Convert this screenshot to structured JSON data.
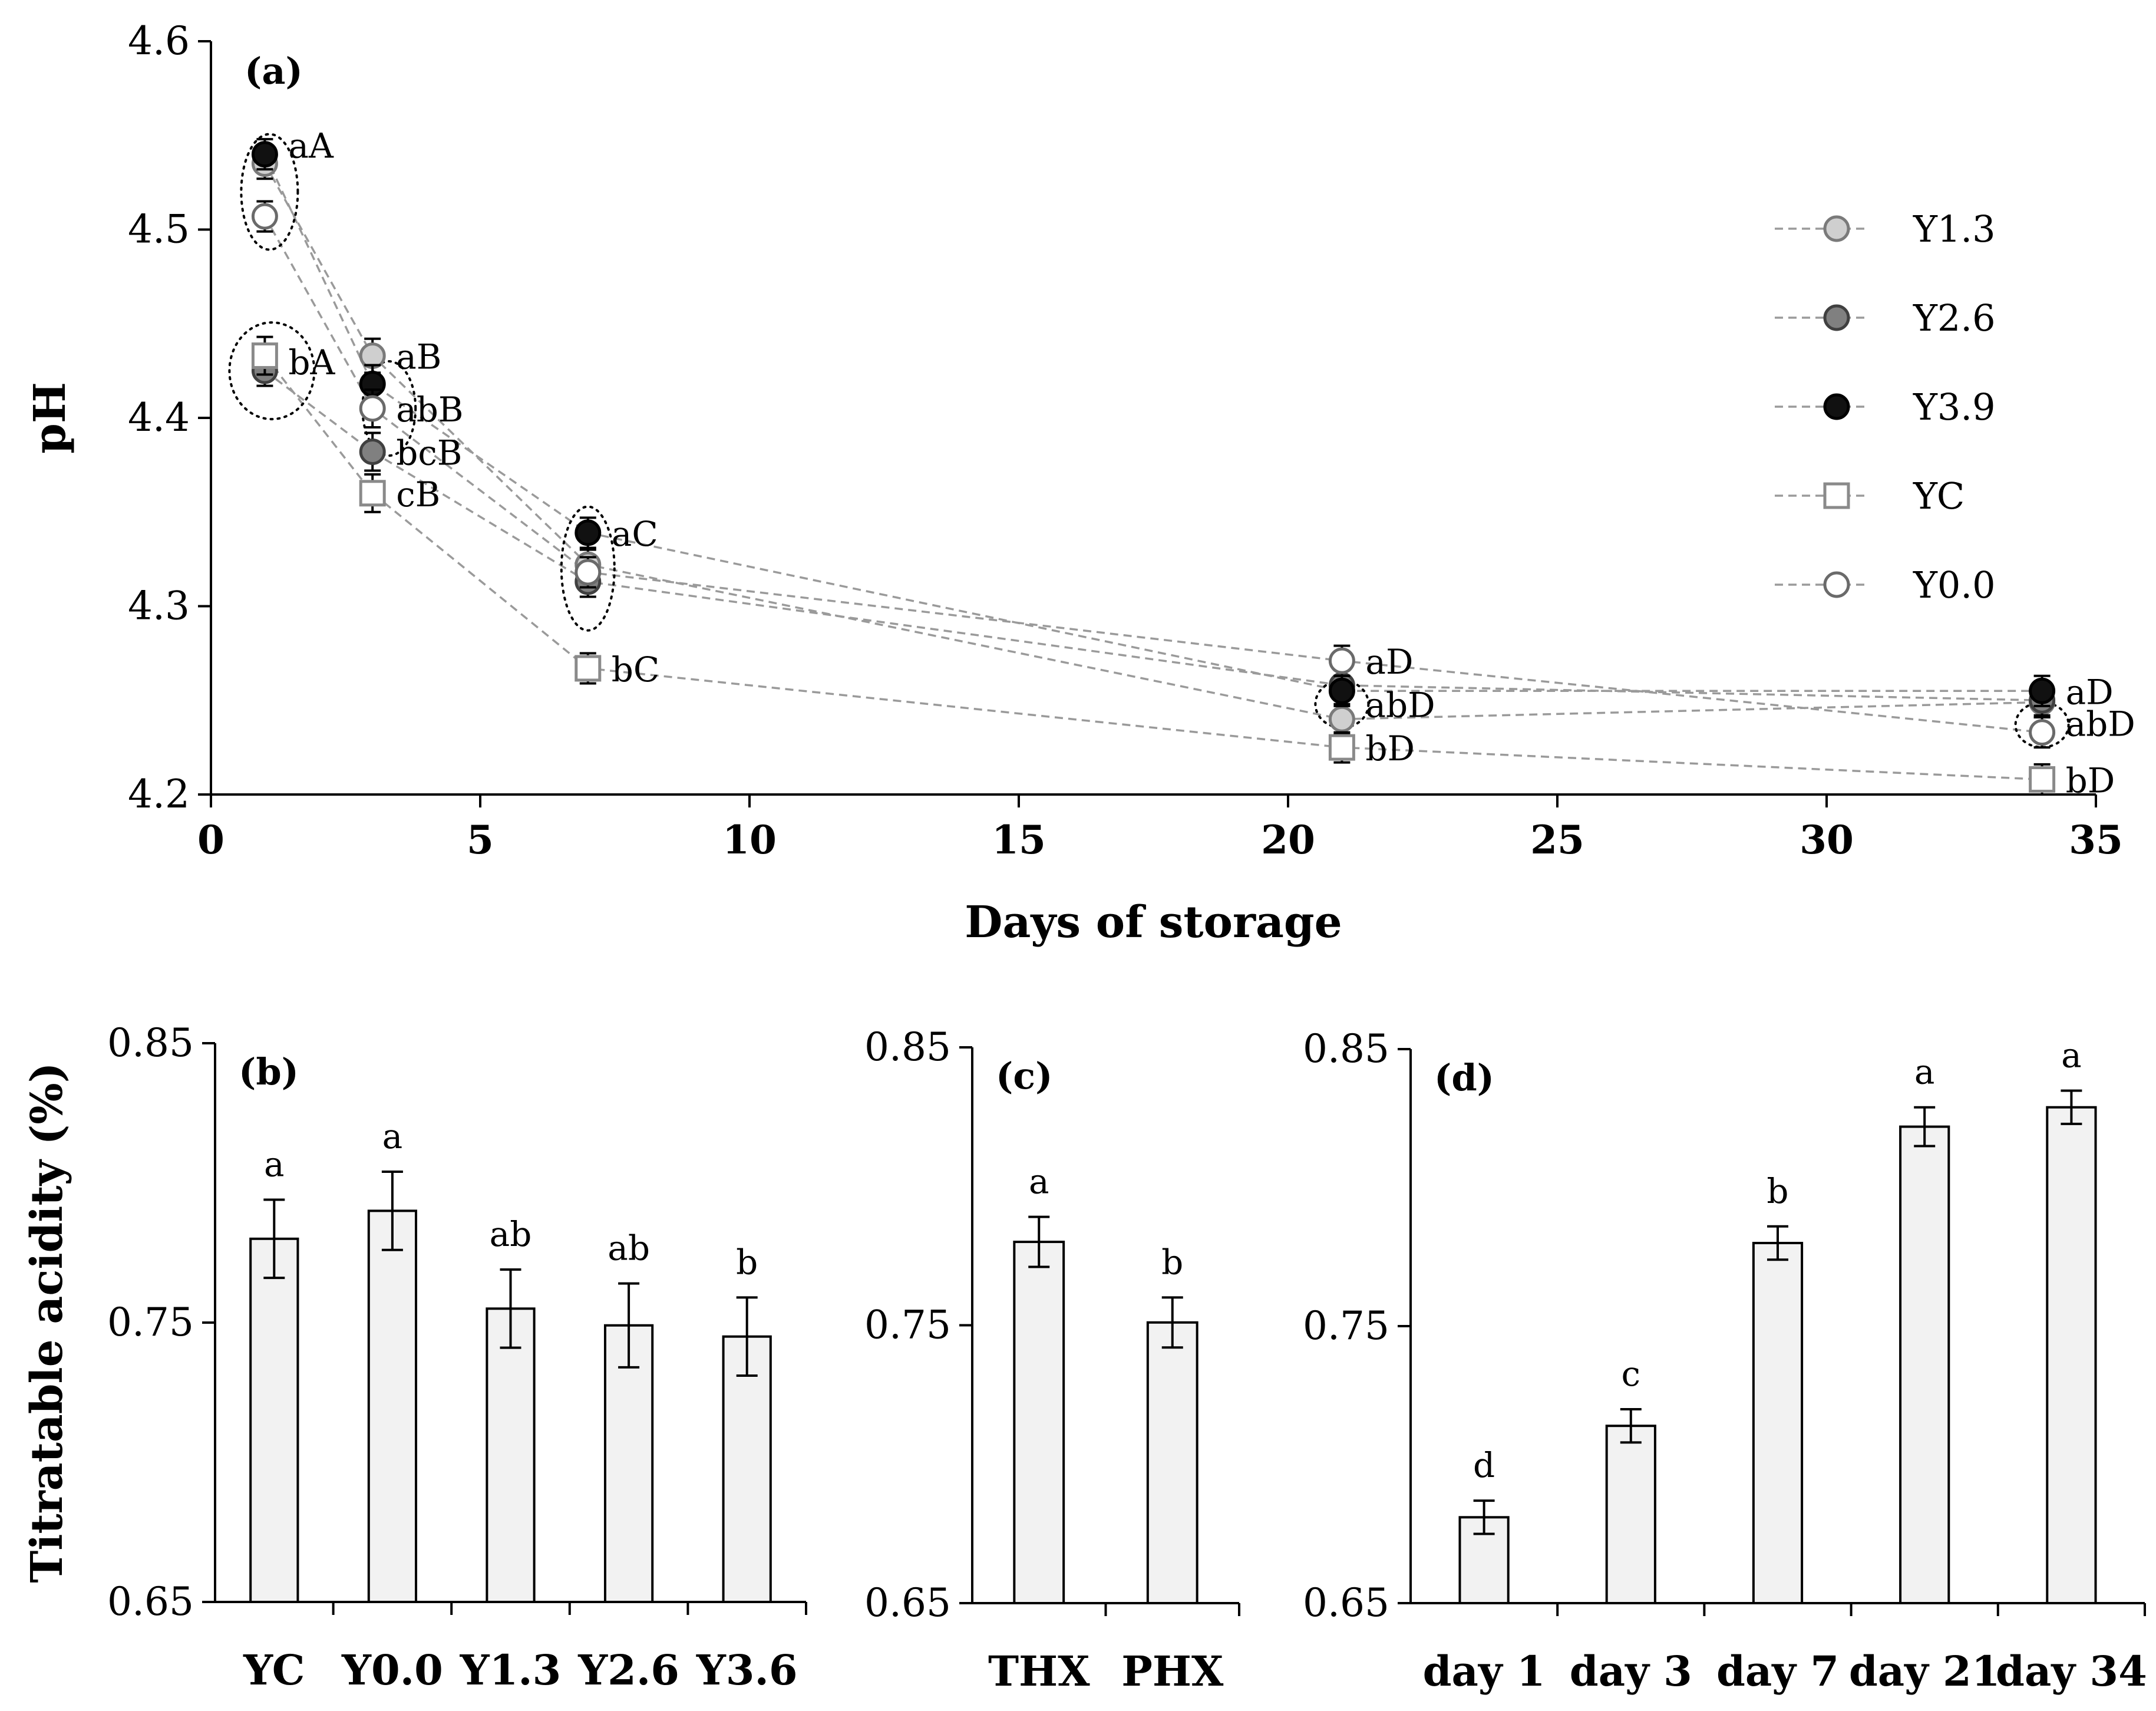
{
  "chart_data": [
    {
      "id": "a",
      "type": "scatter",
      "panel_label": "(a)",
      "ylabel": "pH",
      "xlabel": "Days of storage",
      "xlim": [
        0,
        35
      ],
      "ylim": [
        4.2,
        4.6
      ],
      "xticks": [
        0,
        5,
        10,
        15,
        20,
        25,
        30,
        35
      ],
      "yticks": [
        4.2,
        4.3,
        4.4,
        4.5,
        4.6
      ],
      "ytick_labels": [
        "4.2",
        "4.3",
        "4.4",
        "4.5",
        "4.6"
      ],
      "x": [
        1,
        3,
        7,
        21,
        34
      ],
      "series": [
        {
          "name": "Y1.3",
          "marker": "circle",
          "fill": "#cfcfcf",
          "stroke": "#7a7a7a",
          "values": [
            4.535,
            4.433,
            4.322,
            4.24,
            4.249
          ],
          "errors": [
            0.008,
            0.009,
            0.008,
            0.008,
            0.008
          ]
        },
        {
          "name": "Y2.6",
          "marker": "circle",
          "fill": "#808080",
          "stroke": "#404040",
          "values": [
            4.425,
            4.382,
            4.313,
            4.258,
            4.25
          ],
          "errors": [
            0.008,
            0.01,
            0.008,
            0.008,
            0.008
          ]
        },
        {
          "name": "Y3.9",
          "marker": "circle",
          "fill": "#111111",
          "stroke": "#000000",
          "values": [
            4.54,
            4.418,
            4.339,
            4.255,
            4.255
          ],
          "errors": [
            0.008,
            0.01,
            0.008,
            0.008,
            0.008
          ]
        },
        {
          "name": "YC",
          "marker": "square",
          "fill": "#ffffff",
          "stroke": "#8a8a8a",
          "values": [
            4.433,
            4.36,
            4.267,
            4.225,
            4.208
          ],
          "errors": [
            0.01,
            0.01,
            0.008,
            0.008,
            0.008
          ]
        },
        {
          "name": "Y0.0",
          "marker": "circle",
          "fill": "#ffffff",
          "stroke": "#6a6a6a",
          "values": [
            4.507,
            4.405,
            4.318,
            4.271,
            4.233
          ],
          "errors": [
            0.008,
            0.01,
            0.008,
            0.008,
            0.008
          ]
        }
      ],
      "annotations": [
        {
          "text": "aA",
          "x": 1,
          "y": 4.545
        },
        {
          "text": "bA",
          "x": 1,
          "y": 4.43
        },
        {
          "text": "aB",
          "x": 3,
          "y": 4.433
        },
        {
          "text": "abB",
          "x": 3,
          "y": 4.405
        },
        {
          "text": "bcB",
          "x": 3,
          "y": 4.382
        },
        {
          "text": "cB",
          "x": 3,
          "y": 4.36
        },
        {
          "text": "aC",
          "x": 7,
          "y": 4.339
        },
        {
          "text": "bC",
          "x": 7,
          "y": 4.267
        },
        {
          "text": "aD",
          "x": 21,
          "y": 4.271
        },
        {
          "text": "abD",
          "x": 21,
          "y": 4.248
        },
        {
          "text": "bD",
          "x": 21,
          "y": 4.225
        },
        {
          "text": "aD",
          "x": 34,
          "y": 4.255
        },
        {
          "text": "abD",
          "x": 34,
          "y": 4.238
        },
        {
          "text": "bD",
          "x": 34,
          "y": 4.208
        }
      ],
      "legend_position": "right"
    },
    {
      "id": "b",
      "type": "bar",
      "panel_label": "(b)",
      "ylabel": "Titratable acidity (%)",
      "ylim": [
        0.65,
        0.85
      ],
      "yticks": [
        0.65,
        0.75,
        0.85
      ],
      "ytick_labels": [
        "0.65",
        "0.75",
        "0.85"
      ],
      "categories": [
        "YC",
        "Y0.0",
        "Y1.3",
        "Y2.6",
        "Y3.6"
      ],
      "values": [
        0.78,
        0.79,
        0.755,
        0.749,
        0.745
      ],
      "errors": [
        0.014,
        0.014,
        0.014,
        0.015,
        0.014
      ],
      "letters": [
        "a",
        "a",
        "ab",
        "ab",
        "b"
      ]
    },
    {
      "id": "c",
      "type": "bar",
      "panel_label": "(c)",
      "ylim": [
        0.65,
        0.85
      ],
      "yticks": [
        0.65,
        0.75,
        0.85
      ],
      "ytick_labels": [
        "0.65",
        "0.75",
        "0.85"
      ],
      "categories": [
        "THX",
        "PHX"
      ],
      "values": [
        0.78,
        0.751
      ],
      "errors": [
        0.009,
        0.009
      ],
      "letters": [
        "a",
        "b"
      ]
    },
    {
      "id": "d",
      "type": "bar",
      "panel_label": "(d)",
      "ylim": [
        0.65,
        0.85
      ],
      "yticks": [
        0.65,
        0.75,
        0.85
      ],
      "ytick_labels": [
        "0.65",
        "0.75",
        "0.85"
      ],
      "categories": [
        "day 1",
        "day 3",
        "day 7",
        "day 21",
        "day 34"
      ],
      "values": [
        0.681,
        0.714,
        0.78,
        0.822,
        0.829
      ],
      "errors": [
        0.006,
        0.006,
        0.006,
        0.007,
        0.006
      ],
      "letters": [
        "d",
        "c",
        "b",
        "a",
        "a"
      ]
    }
  ]
}
